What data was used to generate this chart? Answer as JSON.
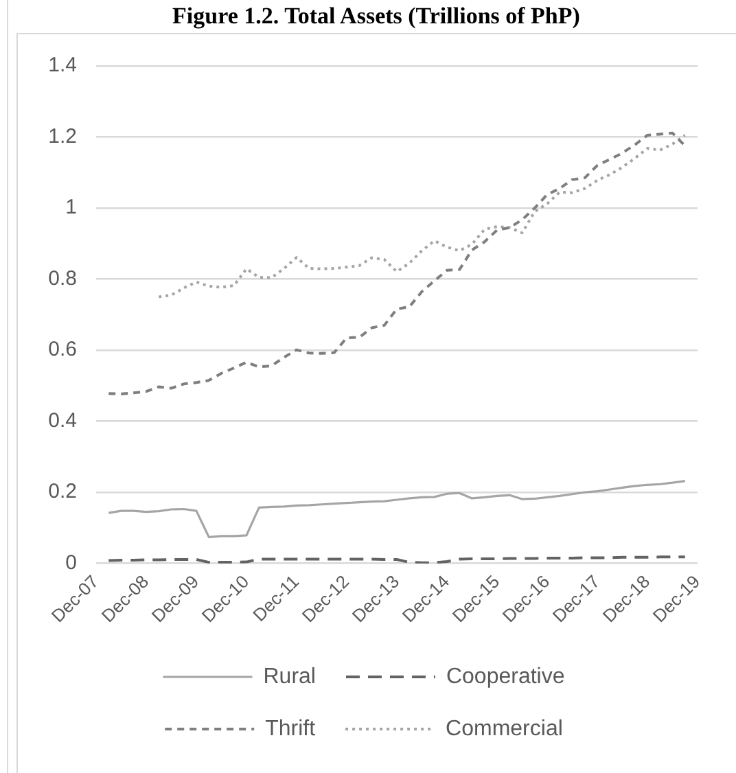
{
  "chart_data": {
    "type": "line",
    "title": "Figure 1.2. Total Assets (Trillions of PhP)",
    "x": [
      "2008-03",
      "2008-06",
      "2008-09",
      "2008-12",
      "2009-03",
      "2009-06",
      "2009-09",
      "2009-12",
      "2010-03",
      "2010-06",
      "2010-09",
      "2010-12",
      "2011-03",
      "2011-06",
      "2011-09",
      "2011-12",
      "2012-03",
      "2012-06",
      "2012-09",
      "2012-12",
      "2013-03",
      "2013-06",
      "2013-09",
      "2013-12",
      "2014-03",
      "2014-06",
      "2014-09",
      "2014-12",
      "2015-03",
      "2015-06",
      "2015-09",
      "2015-12",
      "2016-03",
      "2016-06",
      "2016-09",
      "2016-12",
      "2017-03",
      "2017-06",
      "2017-09",
      "2017-12",
      "2018-03",
      "2018-06",
      "2018-09",
      "2018-12",
      "2019-03",
      "2019-06",
      "2019-09"
    ],
    "series": [
      {
        "name": "Rural",
        "color": "#a5a5a5",
        "line_style": "solid",
        "values": [
          0.142,
          0.148,
          0.148,
          0.145,
          0.147,
          0.152,
          0.153,
          0.148,
          0.074,
          0.077,
          0.077,
          0.079,
          0.157,
          0.159,
          0.16,
          0.163,
          0.164,
          0.166,
          0.168,
          0.17,
          0.172,
          0.174,
          0.175,
          0.179,
          0.183,
          0.186,
          0.187,
          0.196,
          0.198,
          0.183,
          0.186,
          0.19,
          0.192,
          0.181,
          0.182,
          0.186,
          0.19,
          0.195,
          0.2,
          0.203,
          0.208,
          0.213,
          0.218,
          0.221,
          0.223,
          0.227,
          0.232
        ]
      },
      {
        "name": "Cooperative",
        "color": "#636363",
        "line_style": "dashed",
        "values": [
          0.008,
          0.009,
          0.009,
          0.01,
          0.01,
          0.011,
          0.011,
          0.011,
          0.003,
          0.003,
          0.003,
          0.004,
          0.012,
          0.012,
          0.012,
          0.012,
          0.012,
          0.012,
          0.012,
          0.012,
          0.012,
          0.012,
          0.011,
          0.011,
          0.003,
          0.002,
          0.002,
          0.005,
          0.012,
          0.013,
          0.013,
          0.013,
          0.014,
          0.014,
          0.014,
          0.015,
          0.015,
          0.015,
          0.016,
          0.016,
          0.016,
          0.017,
          0.017,
          0.017,
          0.018,
          0.018,
          0.018
        ]
      },
      {
        "name": "Thrift",
        "color": "#7f7f7f",
        "line_style": "dashed",
        "values": [
          0.478,
          0.477,
          0.48,
          0.484,
          0.497,
          0.493,
          0.505,
          0.509,
          0.515,
          0.535,
          0.55,
          0.566,
          0.553,
          0.556,
          0.58,
          0.601,
          0.592,
          0.591,
          0.593,
          0.635,
          0.636,
          0.663,
          0.67,
          0.716,
          0.722,
          0.765,
          0.795,
          0.825,
          0.827,
          0.882,
          0.905,
          0.938,
          0.945,
          0.967,
          1.0,
          1.038,
          1.055,
          1.08,
          1.085,
          1.12,
          1.137,
          1.155,
          1.178,
          1.205,
          1.208,
          1.211,
          1.175
        ]
      },
      {
        "name": "Commercial",
        "color": "#a5a5a5",
        "line_style": "dotted",
        "values": [
          null,
          null,
          null,
          null,
          0.75,
          0.755,
          0.775,
          0.792,
          0.78,
          0.777,
          0.782,
          0.829,
          0.805,
          0.804,
          0.83,
          0.861,
          0.83,
          0.829,
          0.83,
          0.834,
          0.838,
          0.86,
          0.855,
          0.821,
          0.845,
          0.88,
          0.908,
          0.89,
          0.88,
          0.898,
          0.94,
          0.948,
          0.945,
          0.93,
          0.99,
          1.012,
          1.045,
          1.043,
          1.055,
          1.078,
          1.094,
          1.115,
          1.14,
          1.168,
          1.163,
          1.18,
          1.205
        ]
      }
    ],
    "xlim": [
      "2007-12",
      "2019-12"
    ],
    "xticks": [
      {
        "value": "2007-12",
        "label": "Dec-07"
      },
      {
        "value": "2008-12",
        "label": "Dec-08"
      },
      {
        "value": "2009-12",
        "label": "Dec-09"
      },
      {
        "value": "2010-12",
        "label": "Dec-10"
      },
      {
        "value": "2011-12",
        "label": "Dec-11"
      },
      {
        "value": "2012-12",
        "label": "Dec-12"
      },
      {
        "value": "2013-12",
        "label": "Dec-13"
      },
      {
        "value": "2014-12",
        "label": "Dec-14"
      },
      {
        "value": "2015-12",
        "label": "Dec-15"
      },
      {
        "value": "2016-12",
        "label": "Dec-16"
      },
      {
        "value": "2017-12",
        "label": "Dec-17"
      },
      {
        "value": "2018-12",
        "label": "Dec-18"
      },
      {
        "value": "2019-12",
        "label": "Dec-19"
      }
    ],
    "ylim": [
      0,
      1.4
    ],
    "yticks": [
      0,
      0.2,
      0.4,
      0.6,
      0.8,
      1,
      1.2,
      1.4
    ],
    "grid": "y",
    "legend": "bottom",
    "marker": "none"
  }
}
